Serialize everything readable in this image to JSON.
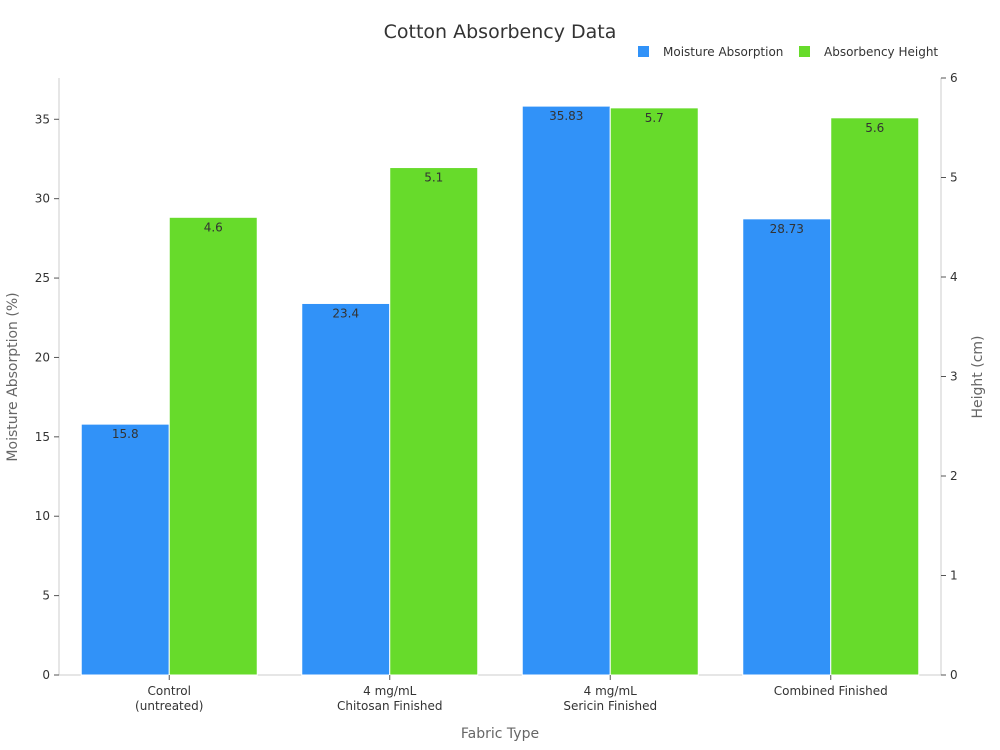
{
  "chart_data": {
    "type": "bar",
    "title": "Cotton Absorbency Data",
    "xlabel": "Fabric Type",
    "ylabel_left": "Moisture Absorption (%)",
    "ylabel_right": "Height (cm)",
    "categories": [
      [
        "Control",
        "(untreated)"
      ],
      [
        "4 mg/mL",
        "Chitosan Finished"
      ],
      [
        "4 mg/mL",
        "Sericin Finished"
      ],
      [
        "Combined Finished"
      ]
    ],
    "series": [
      {
        "name": "Moisture Absorption",
        "axis": "left",
        "color": "#3192F8",
        "values": [
          15.8,
          23.4,
          35.83,
          28.73
        ],
        "labels": [
          "15.8",
          "23.4",
          "35.83",
          "28.73"
        ]
      },
      {
        "name": "Absorbency Height",
        "axis": "right",
        "color": "#67DB2B",
        "values": [
          4.6,
          5.1,
          5.7,
          5.6
        ],
        "labels": [
          "4.6",
          "5.1",
          "5.7",
          "5.6"
        ]
      }
    ],
    "ylim_left": [
      0,
      37.6
    ],
    "yticks_left": [
      "0",
      "5",
      "10",
      "15",
      "20",
      "25",
      "30",
      "35"
    ],
    "ylim_right": [
      0,
      6
    ],
    "yticks_right": [
      "0",
      "1",
      "2",
      "3",
      "4",
      "5",
      "6"
    ],
    "grid": false,
    "legend": "top-right"
  }
}
